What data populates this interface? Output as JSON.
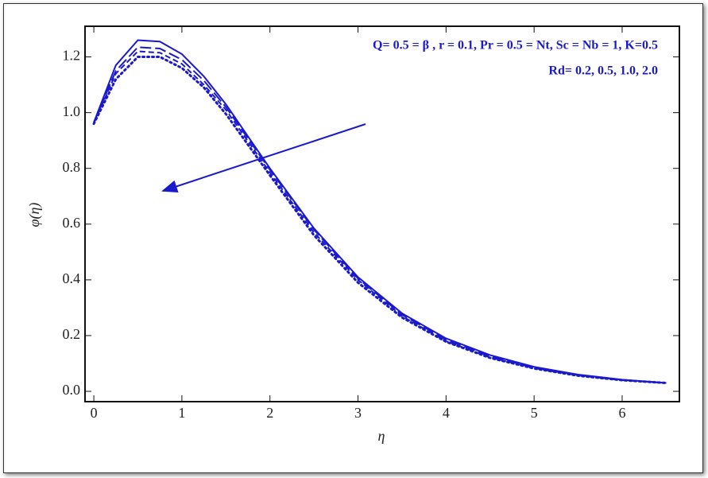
{
  "chart_data": {
    "type": "line",
    "annotations": [
      "Q= 0.5 = β , r = 0.1, Pr = 0.5 = Nt, Sc = Nb = 1, K=0.5",
      "Rd= 0.2, 0.5, 1.0, 2.0"
    ],
    "x_label": "η",
    "y_label": "φ(η)",
    "x": [
      0,
      0.25,
      0.5,
      0.75,
      1,
      1.25,
      1.5,
      2,
      2.5,
      3,
      3.5,
      4,
      4.5,
      5,
      5.5,
      6,
      6.5
    ],
    "series": [
      {
        "color": "#1a1acc",
        "dash": "solid",
        "values": [
          0.965,
          1.17,
          1.26,
          1.255,
          1.21,
          1.13,
          1.03,
          0.8,
          0.585,
          0.41,
          0.28,
          0.19,
          0.13,
          0.088,
          0.06,
          0.042,
          0.03
        ]
      },
      {
        "color": "#1a1acc",
        "dash": "long",
        "values": [
          0.965,
          1.15,
          1.235,
          1.23,
          1.19,
          1.115,
          1.02,
          0.795,
          0.58,
          0.405,
          0.275,
          0.185,
          0.125,
          0.085,
          0.058,
          0.041,
          0.03
        ]
      },
      {
        "color": "#1a1acc",
        "dash": "short",
        "values": [
          0.962,
          1.14,
          1.22,
          1.215,
          1.175,
          1.1,
          1.01,
          0.785,
          0.57,
          0.4,
          0.27,
          0.18,
          0.122,
          0.083,
          0.057,
          0.04,
          0.03
        ]
      },
      {
        "color": "#1a1acc",
        "dash": "dotted",
        "values": [
          0.96,
          1.12,
          1.2,
          1.2,
          1.16,
          1.09,
          0.995,
          0.775,
          0.56,
          0.39,
          0.265,
          0.178,
          0.12,
          0.082,
          0.056,
          0.04,
          0.03
        ]
      }
    ],
    "xlim": [
      -0.1,
      6.65
    ],
    "ylim": [
      -0.037,
      1.31
    ],
    "xticks": [
      0,
      1,
      2,
      3,
      4,
      5,
      6
    ],
    "yticks": [
      {
        "value": 0,
        "label": "0.0"
      },
      0.2,
      0.4,
      0.6,
      0.8,
      {
        "value": 1,
        "label": "1.0"
      },
      1.2
    ]
  }
}
